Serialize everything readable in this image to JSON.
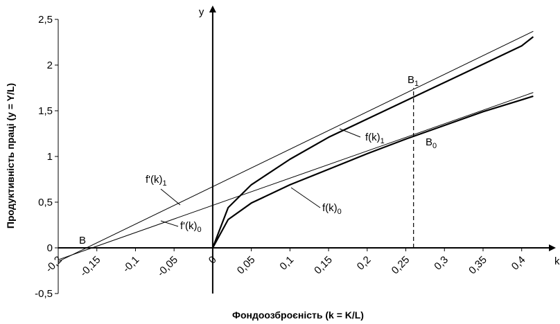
{
  "chart_data": {
    "type": "line",
    "xlabel": "Фондоозброєність (k = K/L)",
    "ylabel": "Продуктивність праці (y = Y/L)",
    "x_axis_letter": "k",
    "y_axis_letter": "y",
    "xlim": [
      -0.2,
      0.42
    ],
    "ylim": [
      -0.5,
      2.5
    ],
    "x_ticks": [
      {
        "v": -0.2,
        "label": "-0,2"
      },
      {
        "v": -0.15,
        "label": "-0,15"
      },
      {
        "v": -0.1,
        "label": "-0,1"
      },
      {
        "v": -0.05,
        "label": "-0,05"
      },
      {
        "v": 0,
        "label": "0"
      },
      {
        "v": 0.05,
        "label": "0,05"
      },
      {
        "v": 0.1,
        "label": "0,1"
      },
      {
        "v": 0.15,
        "label": "0,15"
      },
      {
        "v": 0.2,
        "label": "0,2"
      },
      {
        "v": 0.25,
        "label": "0,25"
      },
      {
        "v": 0.3,
        "label": "0,3"
      },
      {
        "v": 0.35,
        "label": "0,35"
      },
      {
        "v": 0.4,
        "label": "0,4"
      }
    ],
    "y_ticks": [
      {
        "v": -0.5,
        "label": "-0,5"
      },
      {
        "v": 0,
        "label": "0"
      },
      {
        "v": 0.5,
        "label": "0,5"
      },
      {
        "v": 1,
        "label": "1"
      },
      {
        "v": 1.5,
        "label": "1,5"
      },
      {
        "v": 2,
        "label": "2"
      },
      {
        "v": 2.5,
        "label": "2,5"
      }
    ],
    "series": [
      {
        "label": {
          "main": "f(k)",
          "sub": "1"
        },
        "style": "thick",
        "points": [
          [
            0,
            0
          ],
          [
            0.02,
            0.44
          ],
          [
            0.05,
            0.69
          ],
          [
            0.1,
            0.97
          ],
          [
            0.15,
            1.21
          ],
          [
            0.2,
            1.41
          ],
          [
            0.25,
            1.61
          ],
          [
            0.3,
            1.81
          ],
          [
            0.35,
            2.01
          ],
          [
            0.4,
            2.21
          ],
          [
            0.415,
            2.31
          ]
        ]
      },
      {
        "label": {
          "main": "f(k)",
          "sub": "0"
        },
        "style": "thick",
        "points": [
          [
            0,
            0
          ],
          [
            0.02,
            0.31
          ],
          [
            0.05,
            0.49
          ],
          [
            0.1,
            0.69
          ],
          [
            0.15,
            0.86
          ],
          [
            0.2,
            1.03
          ],
          [
            0.25,
            1.19
          ],
          [
            0.3,
            1.34
          ],
          [
            0.35,
            1.49
          ],
          [
            0.4,
            1.62
          ],
          [
            0.415,
            1.66
          ]
        ]
      },
      {
        "label": {
          "main": "f'(k)",
          "sub": "1"
        },
        "style": "thin",
        "points": [
          [
            -0.2,
            -0.15
          ],
          [
            0.415,
            2.37
          ]
        ]
      },
      {
        "label": {
          "main": "f'(k)",
          "sub": "0"
        },
        "style": "thin",
        "points": [
          [
            -0.2,
            -0.13
          ],
          [
            0.415,
            1.7
          ]
        ]
      }
    ],
    "annotations": [
      {
        "main": "B",
        "sub": ""
      },
      {
        "main": "B",
        "sub": "1"
      },
      {
        "main": "B",
        "sub": "0"
      }
    ],
    "dashed_vertical_at_k": 0.26
  }
}
